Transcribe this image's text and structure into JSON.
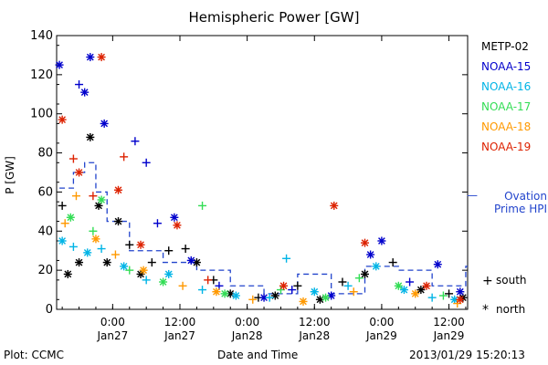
{
  "chart_data": {
    "type": "scatter",
    "title": "Hemispheric Power [GW]",
    "ylabel": "P [GW]",
    "xlabel": "Date and Time",
    "ylim": [
      0,
      140
    ],
    "y_ticks": [
      0,
      20,
      40,
      60,
      80,
      100,
      120,
      140
    ],
    "xlim": [
      "2013-01-26T14:00",
      "2013-01-29T15:20"
    ],
    "x_ticks": [
      {
        "t": "2013-01-27T00:00",
        "time": "0:00",
        "date": "Jan27"
      },
      {
        "t": "2013-01-27T12:00",
        "time": "12:00",
        "date": "Jan27"
      },
      {
        "t": "2013-01-28T00:00",
        "time": "0:00",
        "date": "Jan28"
      },
      {
        "t": "2013-01-28T12:00",
        "time": "12:00",
        "date": "Jan28"
      },
      {
        "t": "2013-01-29T00:00",
        "time": "0:00",
        "date": "Jan29"
      },
      {
        "t": "2013-01-29T12:00",
        "time": "12:00",
        "date": "Jan29"
      }
    ],
    "series": [
      {
        "name": "METP-02",
        "color": "#000000",
        "points": [
          {
            "x": "2013-01-26T15:00",
            "y": 53,
            "m": "+"
          },
          {
            "x": "2013-01-26T16:00",
            "y": 18,
            "m": "*"
          },
          {
            "x": "2013-01-26T18:00",
            "y": 24,
            "m": "*"
          },
          {
            "x": "2013-01-26T20:00",
            "y": 88,
            "m": "*"
          },
          {
            "x": "2013-01-26T21:30",
            "y": 53,
            "m": "*"
          },
          {
            "x": "2013-01-26T23:00",
            "y": 24,
            "m": "*"
          },
          {
            "x": "2013-01-27T01:00",
            "y": 45,
            "m": "*"
          },
          {
            "x": "2013-01-27T03:00",
            "y": 33,
            "m": "+"
          },
          {
            "x": "2013-01-27T05:00",
            "y": 18,
            "m": "*"
          },
          {
            "x": "2013-01-27T07:00",
            "y": 24,
            "m": "+"
          },
          {
            "x": "2013-01-27T10:00",
            "y": 30,
            "m": "+"
          },
          {
            "x": "2013-01-27T13:00",
            "y": 31,
            "m": "+"
          },
          {
            "x": "2013-01-27T15:00",
            "y": 24,
            "m": "*"
          },
          {
            "x": "2013-01-27T18:00",
            "y": 15,
            "m": "+"
          },
          {
            "x": "2013-01-27T21:00",
            "y": 8,
            "m": "*"
          },
          {
            "x": "2013-01-28T02:00",
            "y": 6,
            "m": "+"
          },
          {
            "x": "2013-01-28T05:00",
            "y": 7,
            "m": "*"
          },
          {
            "x": "2013-01-28T09:00",
            "y": 12,
            "m": "+"
          },
          {
            "x": "2013-01-28T13:00",
            "y": 5,
            "m": "*"
          },
          {
            "x": "2013-01-28T17:00",
            "y": 14,
            "m": "+"
          },
          {
            "x": "2013-01-28T21:00",
            "y": 18,
            "m": "*"
          },
          {
            "x": "2013-01-29T02:00",
            "y": 24,
            "m": "+"
          },
          {
            "x": "2013-01-29T07:00",
            "y": 10,
            "m": "*"
          },
          {
            "x": "2013-01-29T12:00",
            "y": 8,
            "m": "+"
          },
          {
            "x": "2013-01-29T14:30",
            "y": 6,
            "m": "*"
          }
        ]
      },
      {
        "name": "NOAA-15",
        "color": "#0000cc",
        "points": [
          {
            "x": "2013-01-26T14:30",
            "y": 125,
            "m": "*"
          },
          {
            "x": "2013-01-26T18:00",
            "y": 115,
            "m": "+"
          },
          {
            "x": "2013-01-26T19:00",
            "y": 111,
            "m": "*"
          },
          {
            "x": "2013-01-26T20:00",
            "y": 129,
            "m": "*"
          },
          {
            "x": "2013-01-26T22:30",
            "y": 95,
            "m": "*"
          },
          {
            "x": "2013-01-27T04:00",
            "y": 86,
            "m": "+"
          },
          {
            "x": "2013-01-27T06:00",
            "y": 75,
            "m": "+"
          },
          {
            "x": "2013-01-27T08:00",
            "y": 44,
            "m": "+"
          },
          {
            "x": "2013-01-27T11:00",
            "y": 47,
            "m": "*"
          },
          {
            "x": "2013-01-27T14:00",
            "y": 25,
            "m": "*"
          },
          {
            "x": "2013-01-27T19:00",
            "y": 12,
            "m": "+"
          },
          {
            "x": "2013-01-28T03:00",
            "y": 6,
            "m": "*"
          },
          {
            "x": "2013-01-28T08:00",
            "y": 10,
            "m": "+"
          },
          {
            "x": "2013-01-28T15:00",
            "y": 7,
            "m": "*"
          },
          {
            "x": "2013-01-28T22:00",
            "y": 28,
            "m": "*"
          },
          {
            "x": "2013-01-29T00:00",
            "y": 35,
            "m": "*"
          },
          {
            "x": "2013-01-29T05:00",
            "y": 14,
            "m": "+"
          },
          {
            "x": "2013-01-29T10:00",
            "y": 23,
            "m": "*"
          },
          {
            "x": "2013-01-29T14:00",
            "y": 9,
            "m": "*"
          }
        ]
      },
      {
        "name": "NOAA-16",
        "color": "#00b4e6",
        "points": [
          {
            "x": "2013-01-26T15:00",
            "y": 35,
            "m": "*"
          },
          {
            "x": "2013-01-26T17:00",
            "y": 32,
            "m": "+"
          },
          {
            "x": "2013-01-26T19:30",
            "y": 29,
            "m": "*"
          },
          {
            "x": "2013-01-26T22:00",
            "y": 31,
            "m": "+"
          },
          {
            "x": "2013-01-27T02:00",
            "y": 22,
            "m": "*"
          },
          {
            "x": "2013-01-27T06:00",
            "y": 15,
            "m": "+"
          },
          {
            "x": "2013-01-27T10:00",
            "y": 18,
            "m": "*"
          },
          {
            "x": "2013-01-27T16:00",
            "y": 10,
            "m": "+"
          },
          {
            "x": "2013-01-27T22:00",
            "y": 7,
            "m": "*"
          },
          {
            "x": "2013-01-28T04:00",
            "y": 6,
            "m": "+"
          },
          {
            "x": "2013-01-28T07:00",
            "y": 26,
            "m": "+"
          },
          {
            "x": "2013-01-28T12:00",
            "y": 9,
            "m": "*"
          },
          {
            "x": "2013-01-28T18:00",
            "y": 12,
            "m": "+"
          },
          {
            "x": "2013-01-28T23:00",
            "y": 22,
            "m": "*"
          },
          {
            "x": "2013-01-29T04:00",
            "y": 10,
            "m": "*"
          },
          {
            "x": "2013-01-29T09:00",
            "y": 6,
            "m": "+"
          },
          {
            "x": "2013-01-29T13:00",
            "y": 5,
            "m": "*"
          }
        ]
      },
      {
        "name": "NOAA-17",
        "color": "#33dd55",
        "points": [
          {
            "x": "2013-01-26T16:30",
            "y": 47,
            "m": "*"
          },
          {
            "x": "2013-01-26T20:30",
            "y": 40,
            "m": "+"
          },
          {
            "x": "2013-01-26T22:00",
            "y": 56,
            "m": "*"
          },
          {
            "x": "2013-01-27T03:00",
            "y": 20,
            "m": "+"
          },
          {
            "x": "2013-01-27T09:00",
            "y": 14,
            "m": "*"
          },
          {
            "x": "2013-01-27T16:00",
            "y": 53,
            "m": "+"
          },
          {
            "x": "2013-01-27T20:00",
            "y": 8,
            "m": "*"
          },
          {
            "x": "2013-01-28T06:00",
            "y": 10,
            "m": "+"
          },
          {
            "x": "2013-01-28T14:00",
            "y": 6,
            "m": "*"
          },
          {
            "x": "2013-01-28T20:00",
            "y": 16,
            "m": "+"
          },
          {
            "x": "2013-01-29T03:00",
            "y": 12,
            "m": "*"
          },
          {
            "x": "2013-01-29T11:00",
            "y": 7,
            "m": "+"
          }
        ]
      },
      {
        "name": "NOAA-18",
        "color": "#ff9900",
        "points": [
          {
            "x": "2013-01-26T15:30",
            "y": 44,
            "m": "+"
          },
          {
            "x": "2013-01-26T17:30",
            "y": 58,
            "m": "+"
          },
          {
            "x": "2013-01-26T21:00",
            "y": 36,
            "m": "*"
          },
          {
            "x": "2013-01-27T00:30",
            "y": 28,
            "m": "+"
          },
          {
            "x": "2013-01-27T05:30",
            "y": 20,
            "m": "*"
          },
          {
            "x": "2013-01-27T12:30",
            "y": 12,
            "m": "+"
          },
          {
            "x": "2013-01-27T18:30",
            "y": 9,
            "m": "*"
          },
          {
            "x": "2013-01-28T01:00",
            "y": 5,
            "m": "+"
          },
          {
            "x": "2013-01-28T10:00",
            "y": 4,
            "m": "*"
          },
          {
            "x": "2013-01-28T19:00",
            "y": 9,
            "m": "+"
          },
          {
            "x": "2013-01-29T06:00",
            "y": 8,
            "m": "*"
          },
          {
            "x": "2013-01-29T13:30",
            "y": 3,
            "m": "+"
          }
        ]
      },
      {
        "name": "NOAA-19",
        "color": "#dd2200",
        "points": [
          {
            "x": "2013-01-26T15:00",
            "y": 97,
            "m": "*"
          },
          {
            "x": "2013-01-26T17:00",
            "y": 77,
            "m": "+"
          },
          {
            "x": "2013-01-26T18:00",
            "y": 70,
            "m": "*"
          },
          {
            "x": "2013-01-26T20:30",
            "y": 58,
            "m": "+"
          },
          {
            "x": "2013-01-26T22:00",
            "y": 129,
            "m": "*"
          },
          {
            "x": "2013-01-27T01:00",
            "y": 61,
            "m": "*"
          },
          {
            "x": "2013-01-27T02:00",
            "y": 78,
            "m": "+"
          },
          {
            "x": "2013-01-27T05:00",
            "y": 33,
            "m": "*"
          },
          {
            "x": "2013-01-27T11:30",
            "y": 43,
            "m": "*"
          },
          {
            "x": "2013-01-27T17:00",
            "y": 15,
            "m": "+"
          },
          {
            "x": "2013-01-28T06:30",
            "y": 12,
            "m": "*"
          },
          {
            "x": "2013-01-28T15:30",
            "y": 53,
            "m": "*"
          },
          {
            "x": "2013-01-28T21:00",
            "y": 34,
            "m": "*"
          },
          {
            "x": "2013-01-29T08:00",
            "y": 12,
            "m": "*"
          },
          {
            "x": "2013-01-29T14:00",
            "y": 5,
            "m": "*"
          }
        ]
      }
    ],
    "ovation": {
      "name": "Ovation Prime HPI",
      "color": "#2244cc",
      "points": [
        {
          "x": "2013-01-26T14:30",
          "y": 62
        },
        {
          "x": "2013-01-26T17:00",
          "y": 70
        },
        {
          "x": "2013-01-26T19:00",
          "y": 75
        },
        {
          "x": "2013-01-26T21:00",
          "y": 60
        },
        {
          "x": "2013-01-26T23:00",
          "y": 45
        },
        {
          "x": "2013-01-27T03:00",
          "y": 30
        },
        {
          "x": "2013-01-27T09:00",
          "y": 24
        },
        {
          "x": "2013-01-27T15:00",
          "y": 20
        },
        {
          "x": "2013-01-27T21:00",
          "y": 12
        },
        {
          "x": "2013-01-28T03:00",
          "y": 8
        },
        {
          "x": "2013-01-28T09:00",
          "y": 18
        },
        {
          "x": "2013-01-28T15:00",
          "y": 8
        },
        {
          "x": "2013-01-28T21:00",
          "y": 22
        },
        {
          "x": "2013-01-29T03:00",
          "y": 20
        },
        {
          "x": "2013-01-29T09:00",
          "y": 12
        },
        {
          "x": "2013-01-29T15:00",
          "y": 22
        }
      ]
    },
    "marker_legend": [
      {
        "symbol": "+",
        "label": "south"
      },
      {
        "symbol": "*",
        "label": "north"
      }
    ]
  },
  "footer": {
    "left": "Plot: CCMC",
    "center": "Date and Time",
    "right": "2013/01/29 15:20:13"
  }
}
